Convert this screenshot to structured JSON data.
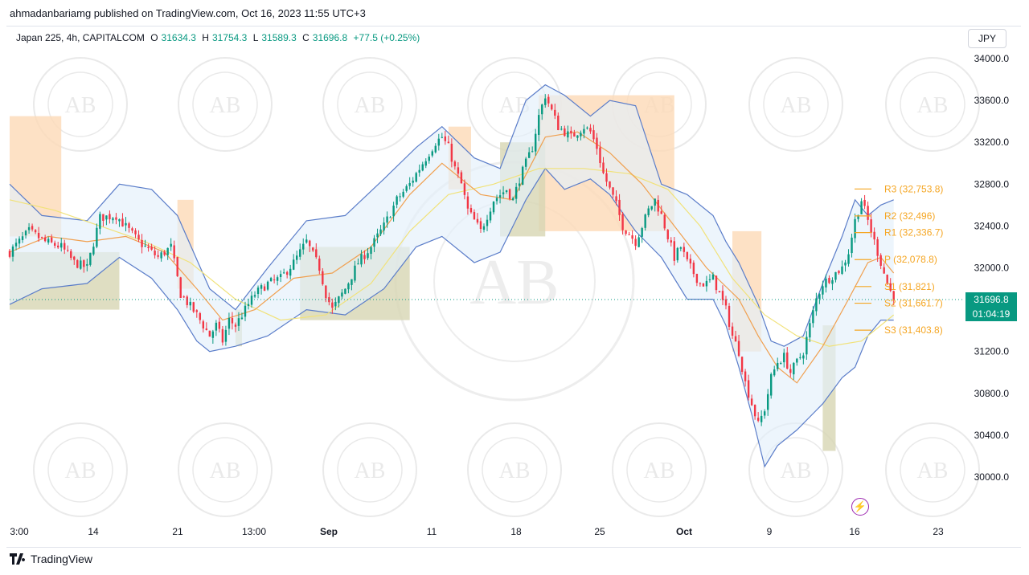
{
  "header": {
    "publisher_line": "ahmadanbariamg published on TradingView.com, Oct 16, 2023 11:55 UTC+3"
  },
  "legend": {
    "symbol": "Japan 225, 4h, CAPITALCOM",
    "o_label": "O",
    "o_value": "31634.3",
    "h_label": "H",
    "h_value": "31754.3",
    "l_label": "L",
    "l_value": "31589.3",
    "c_label": "C",
    "c_value": "31696.8",
    "change": "+77.5 (+0.25%)"
  },
  "currency": "JPY",
  "last_price": {
    "price": "31696.8",
    "countdown": "01:04:19"
  },
  "footer": {
    "brand": "TradingView"
  },
  "watermark": {
    "text": "AB"
  },
  "colors": {
    "up": "#089981",
    "down": "#f23645",
    "bb_line": "#5b7dc9",
    "bb_fill": "#e3f0fb",
    "ema_orange": "#f0a050",
    "sma_yellow": "#f1e27a",
    "supply_zone": "#fcd9b6",
    "demand_zone": "#d7d6b3",
    "pivot": "#f5a623"
  },
  "chart_data": {
    "type": "candlestick",
    "symbol": "Japan 225",
    "timeframe": "4h",
    "ylim": [
      29700,
      34200
    ],
    "y_ticks": [
      {
        "value": 30000,
        "label": "30000.0"
      },
      {
        "value": 30400,
        "label": "30400.0"
      },
      {
        "value": 30800,
        "label": "30800.0"
      },
      {
        "value": 31200,
        "label": "31200.0"
      },
      {
        "value": 31600,
        "label": "31600.0"
      },
      {
        "value": 32000,
        "label": "32000.0"
      },
      {
        "value": 32400,
        "label": "32400.0"
      },
      {
        "value": 32800,
        "label": "32800.0"
      },
      {
        "value": 33200,
        "label": "33200.0"
      },
      {
        "value": 33600,
        "label": "33600.0"
      },
      {
        "value": 34000,
        "label": "34000.0"
      }
    ],
    "x_ticks": [
      {
        "label": "3:00",
        "bold": false
      },
      {
        "label": "14",
        "bold": false
      },
      {
        "label": "21",
        "bold": false
      },
      {
        "label": "13:00",
        "bold": false
      },
      {
        "label": "Sep",
        "bold": true
      },
      {
        "label": "11",
        "bold": false
      },
      {
        "label": "18",
        "bold": false
      },
      {
        "label": "25",
        "bold": false
      },
      {
        "label": "Oct",
        "bold": true
      },
      {
        "label": "9",
        "bold": false
      },
      {
        "label": "16",
        "bold": false
      },
      {
        "label": "23",
        "bold": false
      }
    ],
    "close_path": [
      [
        0,
        32150
      ],
      [
        6,
        32350
      ],
      [
        11,
        32250
      ],
      [
        16,
        32200
      ],
      [
        20,
        32050
      ],
      [
        24,
        32000
      ],
      [
        28,
        32480
      ],
      [
        33,
        32500
      ],
      [
        40,
        32250
      ],
      [
        46,
        32100
      ],
      [
        50,
        32200
      ],
      [
        53,
        31750
      ],
      [
        58,
        31550
      ],
      [
        62,
        31350
      ],
      [
        64,
        31450
      ],
      [
        66,
        31300
      ],
      [
        68,
        31500
      ],
      [
        70,
        31450
      ],
      [
        72,
        31550
      ],
      [
        76,
        31750
      ],
      [
        80,
        31850
      ],
      [
        84,
        31900
      ],
      [
        88,
        32050
      ],
      [
        92,
        32250
      ],
      [
        96,
        32000
      ],
      [
        98,
        31750
      ],
      [
        100,
        31600
      ],
      [
        104,
        31800
      ],
      [
        108,
        32050
      ],
      [
        112,
        32200
      ],
      [
        116,
        32400
      ],
      [
        120,
        32650
      ],
      [
        124,
        32800
      ],
      [
        128,
        33000
      ],
      [
        132,
        33200
      ],
      [
        134,
        33250
      ],
      [
        136,
        33150
      ],
      [
        138,
        32950
      ],
      [
        140,
        32800
      ],
      [
        142,
        32550
      ],
      [
        144,
        32450
      ],
      [
        146,
        32350
      ],
      [
        148,
        32500
      ],
      [
        150,
        32650
      ],
      [
        152,
        32700
      ],
      [
        154,
        32750
      ],
      [
        156,
        32650
      ],
      [
        158,
        32850
      ],
      [
        162,
        33150
      ],
      [
        164,
        33450
      ],
      [
        166,
        33650
      ],
      [
        168,
        33500
      ],
      [
        170,
        33350
      ],
      [
        174,
        33250
      ],
      [
        178,
        33350
      ],
      [
        180,
        33300
      ],
      [
        182,
        33150
      ],
      [
        184,
        32900
      ],
      [
        186,
        32750
      ],
      [
        188,
        32600
      ],
      [
        190,
        32400
      ],
      [
        194,
        32250
      ],
      [
        196,
        32400
      ],
      [
        198,
        32550
      ],
      [
        200,
        32650
      ],
      [
        202,
        32500
      ],
      [
        204,
        32300
      ],
      [
        206,
        32100
      ],
      [
        208,
        32200
      ],
      [
        210,
        32050
      ],
      [
        212,
        31950
      ],
      [
        214,
        31850
      ],
      [
        216,
        31850
      ],
      [
        218,
        31900
      ],
      [
        220,
        31750
      ],
      [
        222,
        31600
      ],
      [
        224,
        31350
      ],
      [
        226,
        31200
      ],
      [
        228,
        30900
      ],
      [
        230,
        30700
      ],
      [
        232,
        30500
      ],
      [
        234,
        30650
      ],
      [
        236,
        30950
      ],
      [
        238,
        31100
      ],
      [
        240,
        31150
      ],
      [
        242,
        31000
      ],
      [
        244,
        31100
      ],
      [
        246,
        31200
      ],
      [
        248,
        31450
      ],
      [
        250,
        31700
      ],
      [
        252,
        31850
      ],
      [
        254,
        31900
      ],
      [
        256,
        31950
      ],
      [
        258,
        32000
      ],
      [
        260,
        32150
      ],
      [
        262,
        32450
      ],
      [
        264,
        32650
      ],
      [
        266,
        32450
      ],
      [
        268,
        32250
      ],
      [
        270,
        32050
      ],
      [
        272,
        31850
      ],
      [
        274,
        31700
      ]
    ],
    "indicators": {
      "bollinger_upper": [
        [
          0,
          32800
        ],
        [
          10,
          32500
        ],
        [
          24,
          32450
        ],
        [
          34,
          32800
        ],
        [
          44,
          32750
        ],
        [
          52,
          32500
        ],
        [
          62,
          31800
        ],
        [
          70,
          31600
        ],
        [
          80,
          32000
        ],
        [
          92,
          32450
        ],
        [
          104,
          32500
        ],
        [
          116,
          32850
        ],
        [
          126,
          33150
        ],
        [
          134,
          33350
        ],
        [
          144,
          33050
        ],
        [
          152,
          32950
        ],
        [
          160,
          33600
        ],
        [
          166,
          33750
        ],
        [
          172,
          33650
        ],
        [
          180,
          33450
        ],
        [
          186,
          33600
        ],
        [
          194,
          33550
        ],
        [
          202,
          32800
        ],
        [
          210,
          32700
        ],
        [
          218,
          32500
        ],
        [
          222,
          32250
        ],
        [
          226,
          32050
        ],
        [
          232,
          31650
        ],
        [
          236,
          31300
        ],
        [
          240,
          31250
        ],
        [
          246,
          31350
        ],
        [
          252,
          31850
        ],
        [
          258,
          32300
        ],
        [
          262,
          32650
        ],
        [
          266,
          32500
        ],
        [
          270,
          32600
        ],
        [
          274,
          32650
        ]
      ],
      "bollinger_lower": [
        [
          0,
          31650
        ],
        [
          10,
          31800
        ],
        [
          24,
          31850
        ],
        [
          34,
          32100
        ],
        [
          44,
          31900
        ],
        [
          52,
          31600
        ],
        [
          58,
          31300
        ],
        [
          62,
          31200
        ],
        [
          70,
          31250
        ],
        [
          80,
          31350
        ],
        [
          92,
          31600
        ],
        [
          104,
          31550
        ],
        [
          116,
          31800
        ],
        [
          126,
          32200
        ],
        [
          134,
          32300
        ],
        [
          144,
          32050
        ],
        [
          152,
          32150
        ],
        [
          160,
          32650
        ],
        [
          166,
          32950
        ],
        [
          172,
          32750
        ],
        [
          180,
          32850
        ],
        [
          186,
          32700
        ],
        [
          194,
          32350
        ],
        [
          202,
          32100
        ],
        [
          210,
          31700
        ],
        [
          218,
          31700
        ],
        [
          222,
          31450
        ],
        [
          226,
          31050
        ],
        [
          230,
          30600
        ],
        [
          234,
          30100
        ],
        [
          238,
          30300
        ],
        [
          244,
          30450
        ],
        [
          252,
          30700
        ],
        [
          258,
          30950
        ],
        [
          262,
          31050
        ],
        [
          266,
          31350
        ],
        [
          270,
          31500
        ],
        [
          274,
          31500
        ]
      ],
      "ema": [
        [
          0,
          32150
        ],
        [
          12,
          32300
        ],
        [
          24,
          32250
        ],
        [
          36,
          32300
        ],
        [
          48,
          32150
        ],
        [
          58,
          31800
        ],
        [
          66,
          31500
        ],
        [
          76,
          31600
        ],
        [
          88,
          31900
        ],
        [
          100,
          31950
        ],
        [
          112,
          32200
        ],
        [
          124,
          32700
        ],
        [
          134,
          33000
        ],
        [
          146,
          32700
        ],
        [
          156,
          32650
        ],
        [
          166,
          33250
        ],
        [
          176,
          33300
        ],
        [
          186,
          33100
        ],
        [
          196,
          32800
        ],
        [
          206,
          32400
        ],
        [
          216,
          32000
        ],
        [
          226,
          31700
        ],
        [
          232,
          31350
        ],
        [
          238,
          31050
        ],
        [
          244,
          30900
        ],
        [
          252,
          31250
        ],
        [
          260,
          31700
        ],
        [
          266,
          32050
        ],
        [
          270,
          32100
        ],
        [
          274,
          31950
        ]
      ],
      "sma": [
        [
          0,
          32650
        ],
        [
          14,
          32550
        ],
        [
          28,
          32400
        ],
        [
          42,
          32250
        ],
        [
          56,
          32050
        ],
        [
          70,
          31700
        ],
        [
          84,
          31500
        ],
        [
          98,
          31550
        ],
        [
          112,
          31850
        ],
        [
          124,
          32350
        ],
        [
          136,
          32700
        ],
        [
          150,
          32800
        ],
        [
          164,
          32950
        ],
        [
          178,
          32950
        ],
        [
          192,
          32900
        ],
        [
          204,
          32750
        ],
        [
          214,
          32400
        ],
        [
          224,
          31900
        ],
        [
          234,
          31550
        ],
        [
          244,
          31350
        ],
        [
          254,
          31250
        ],
        [
          264,
          31300
        ],
        [
          274,
          31550
        ]
      ]
    },
    "zones": [
      {
        "type": "supply",
        "x0": 0,
        "x1": 16,
        "y0": 32300,
        "y1": 33450
      },
      {
        "type": "supply",
        "x0": 52,
        "x1": 57,
        "y0": 31800,
        "y1": 32650
      },
      {
        "type": "supply",
        "x0": 136,
        "x1": 143,
        "y0": 32750,
        "y1": 33350
      },
      {
        "type": "supply",
        "x0": 164,
        "x1": 206,
        "y0": 32350,
        "y1": 33650
      },
      {
        "type": "supply",
        "x0": 224,
        "x1": 233,
        "y0": 31200,
        "y1": 32350
      },
      {
        "type": "demand",
        "x0": 0,
        "x1": 34,
        "y0": 31600,
        "y1": 32150
      },
      {
        "type": "demand",
        "x0": 70,
        "x1": 72,
        "y0": 31250,
        "y1": 31600
      },
      {
        "type": "demand",
        "x0": 90,
        "x1": 124,
        "y0": 31500,
        "y1": 32200
      },
      {
        "type": "demand",
        "x0": 152,
        "x1": 166,
        "y0": 32300,
        "y1": 33200
      },
      {
        "type": "demand",
        "x0": 252,
        "x1": 256,
        "y0": 30250,
        "y1": 31450
      }
    ],
    "pivot_levels": [
      {
        "label": "R3 (32,753.8)",
        "value": 32753.8
      },
      {
        "label": "R2 (32,496)",
        "value": 32496
      },
      {
        "label": "R1 (32,336.7)",
        "value": 32336.7
      },
      {
        "label": "P (32,078.8)",
        "value": 32078.8
      },
      {
        "label": "S1 (31,821)",
        "value": 31821
      },
      {
        "label": "S2 (31,661.7)",
        "value": 31661.7
      },
      {
        "label": "S3 (31,403.8)",
        "value": 31403.8
      }
    ],
    "last_close": 31696.8
  }
}
